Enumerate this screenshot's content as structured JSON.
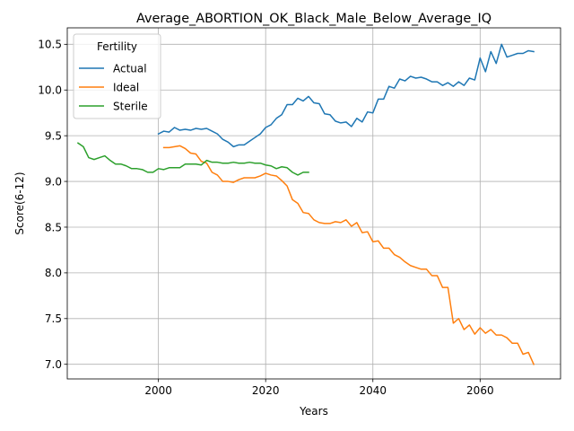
{
  "chart_data": {
    "type": "line",
    "title": "Average_ABORTION_OK_Black_Male_Below_Average_IQ",
    "xlabel": "Years",
    "ylabel": "Score(6-12)",
    "xlim": [
      1983,
      2075
    ],
    "ylim": [
      6.84,
      10.68
    ],
    "xticks": [
      2000,
      2020,
      2040,
      2060
    ],
    "yticks": [
      7.0,
      7.5,
      8.0,
      8.5,
      9.0,
      9.5,
      10.0,
      10.5
    ],
    "ytick_labels": [
      "7.0",
      "7.5",
      "8.0",
      "8.5",
      "9.0",
      "9.5",
      "10.0",
      "10.5"
    ],
    "grid": true,
    "legend": {
      "title": "Fertility",
      "placement": "top-left"
    },
    "series": [
      {
        "name": "Actual",
        "color": "#1f77b4",
        "x": [
          2000,
          2001,
          2002,
          2003,
          2004,
          2005,
          2006,
          2007,
          2008,
          2009,
          2010,
          2011,
          2012,
          2013,
          2014,
          2015,
          2016,
          2017,
          2018,
          2019,
          2020,
          2021,
          2022,
          2023,
          2024,
          2025,
          2026,
          2027,
          2028,
          2029,
          2030,
          2031,
          2032,
          2033,
          2034,
          2035,
          2036,
          2037,
          2038,
          2039,
          2040,
          2041,
          2042,
          2043,
          2044,
          2045,
          2046,
          2047,
          2048,
          2049,
          2050,
          2051,
          2052,
          2053,
          2054,
          2055,
          2056,
          2057,
          2058,
          2059,
          2060,
          2061,
          2062,
          2063,
          2064,
          2065,
          2066,
          2067,
          2068,
          2069,
          2070
        ],
        "y": [
          9.52,
          9.55,
          9.54,
          9.59,
          9.56,
          9.57,
          9.56,
          9.58,
          9.57,
          9.58,
          9.55,
          9.52,
          9.46,
          9.43,
          9.38,
          9.4,
          9.4,
          9.44,
          9.48,
          9.52,
          9.59,
          9.62,
          9.69,
          9.73,
          9.84,
          9.84,
          9.91,
          9.88,
          9.93,
          9.86,
          9.85,
          9.74,
          9.73,
          9.66,
          9.64,
          9.65,
          9.6,
          9.69,
          9.65,
          9.76,
          9.75,
          9.9,
          9.9,
          10.04,
          10.02,
          10.12,
          10.1,
          10.15,
          10.13,
          10.14,
          10.12,
          10.09,
          10.09,
          10.05,
          10.08,
          10.04,
          10.09,
          10.05,
          10.13,
          10.11,
          10.35,
          10.2,
          10.42,
          10.29,
          10.5,
          10.36,
          10.38,
          10.4,
          10.4,
          10.43,
          10.42
        ]
      },
      {
        "name": "Ideal",
        "color": "#ff7f0e",
        "x": [
          2001,
          2002,
          2003,
          2004,
          2005,
          2006,
          2007,
          2008,
          2009,
          2010,
          2011,
          2012,
          2013,
          2014,
          2015,
          2016,
          2017,
          2018,
          2019,
          2020,
          2021,
          2022,
          2023,
          2024,
          2025,
          2026,
          2027,
          2028,
          2029,
          2030,
          2031,
          2032,
          2033,
          2034,
          2035,
          2036,
          2037,
          2038,
          2039,
          2040,
          2041,
          2042,
          2043,
          2044,
          2045,
          2046,
          2047,
          2048,
          2049,
          2050,
          2051,
          2052,
          2053,
          2054,
          2055,
          2056,
          2057,
          2058,
          2059,
          2060,
          2061,
          2062,
          2063,
          2064,
          2065,
          2066,
          2067,
          2068,
          2069,
          2070
        ],
        "y": [
          9.37,
          9.37,
          9.38,
          9.39,
          9.36,
          9.31,
          9.3,
          9.22,
          9.2,
          9.1,
          9.07,
          9.0,
          9.0,
          8.99,
          9.02,
          9.04,
          9.04,
          9.04,
          9.06,
          9.09,
          9.07,
          9.06,
          9.01,
          8.95,
          8.8,
          8.76,
          8.66,
          8.65,
          8.58,
          8.55,
          8.54,
          8.54,
          8.56,
          8.55,
          8.58,
          8.51,
          8.55,
          8.44,
          8.45,
          8.34,
          8.35,
          8.27,
          8.27,
          8.2,
          8.17,
          8.12,
          8.08,
          8.06,
          8.04,
          8.04,
          7.97,
          7.97,
          7.84,
          7.84,
          7.45,
          7.5,
          7.38,
          7.43,
          7.33,
          7.4,
          7.34,
          7.38,
          7.32,
          7.32,
          7.29,
          7.23,
          7.23,
          7.11,
          7.13,
          7.0
        ]
      },
      {
        "name": "Sterile",
        "color": "#2ca02c",
        "x": [
          1985,
          1986,
          1987,
          1988,
          1989,
          1990,
          1991,
          1992,
          1993,
          1994,
          1995,
          1996,
          1997,
          1998,
          1999,
          2000,
          2001,
          2002,
          2003,
          2004,
          2005,
          2006,
          2007,
          2008,
          2009,
          2010,
          2011,
          2012,
          2013,
          2014,
          2015,
          2016,
          2017,
          2018,
          2019,
          2020,
          2021,
          2022,
          2023,
          2024,
          2025,
          2026,
          2027,
          2028
        ],
        "y": [
          9.42,
          9.38,
          9.26,
          9.24,
          9.26,
          9.28,
          9.23,
          9.19,
          9.19,
          9.17,
          9.14,
          9.14,
          9.13,
          9.1,
          9.1,
          9.14,
          9.13,
          9.15,
          9.15,
          9.15,
          9.19,
          9.19,
          9.19,
          9.18,
          9.23,
          9.21,
          9.21,
          9.2,
          9.2,
          9.21,
          9.2,
          9.2,
          9.21,
          9.2,
          9.2,
          9.18,
          9.17,
          9.14,
          9.16,
          9.15,
          9.1,
          9.07,
          9.1,
          9.1
        ]
      }
    ]
  }
}
